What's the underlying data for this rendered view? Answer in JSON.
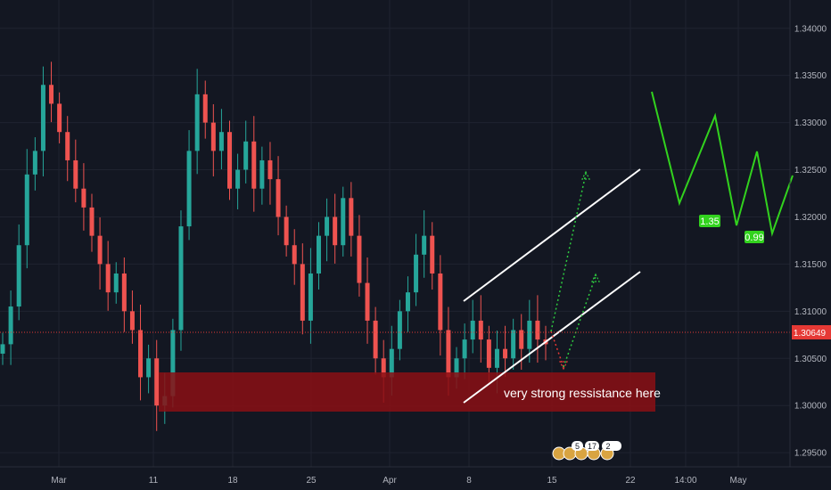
{
  "chart_data": {
    "type": "candlestick",
    "title": "",
    "xlabel": "",
    "ylabel": "",
    "ylim": [
      1.2935,
      1.343
    ],
    "y_ticks": [
      {
        "value": 1.295,
        "label": "1.29500"
      },
      {
        "value": 1.3,
        "label": "1.30000"
      },
      {
        "value": 1.305,
        "label": "1.30500"
      },
      {
        "value": 1.31,
        "label": "1.31000"
      },
      {
        "value": 1.315,
        "label": "1.31500"
      },
      {
        "value": 1.32,
        "label": "1.32000"
      },
      {
        "value": 1.325,
        "label": "1.32500"
      },
      {
        "value": 1.33,
        "label": "1.33000"
      },
      {
        "value": 1.335,
        "label": "1.33500"
      },
      {
        "value": 1.34,
        "label": "1.34000"
      }
    ],
    "x_ticks": [
      "Mar",
      "11",
      "18",
      "25",
      "Apr",
      "8",
      "15",
      "22",
      "14:00",
      "May"
    ],
    "current_price": {
      "value": 1.30649,
      "label": "1.30649"
    },
    "series": [
      {
        "values": [
          1.3065,
          1.3105,
          1.317,
          1.3245,
          1.327,
          1.334,
          1.332,
          1.329,
          1.326,
          1.323,
          1.321,
          1.318,
          1.315,
          1.312,
          1.314,
          1.31,
          1.308,
          1.303,
          1.305,
          1.3,
          1.301,
          1.308,
          1.319,
          1.327,
          1.333,
          1.33,
          1.327,
          1.329,
          1.323,
          1.325,
          1.328,
          1.323,
          1.326,
          1.324,
          1.32,
          1.317,
          1.315,
          1.309,
          1.314,
          1.318,
          1.32,
          1.317,
          1.322,
          1.318,
          1.313,
          1.309,
          1.305,
          1.303,
          1.306,
          1.31,
          1.312,
          1.316,
          1.318,
          1.314,
          1.308,
          1.303,
          1.305,
          1.307,
          1.309,
          1.307,
          1.304,
          1.306,
          1.305,
          1.308,
          1.306,
          1.309,
          1.307,
          1.3065
        ]
      }
    ],
    "annotations": {
      "zone_label": "very strong ressistance here",
      "badge_1": "1.35",
      "badge_2": "0.99",
      "icon_badges": [
        "5",
        "17",
        "2"
      ]
    }
  }
}
